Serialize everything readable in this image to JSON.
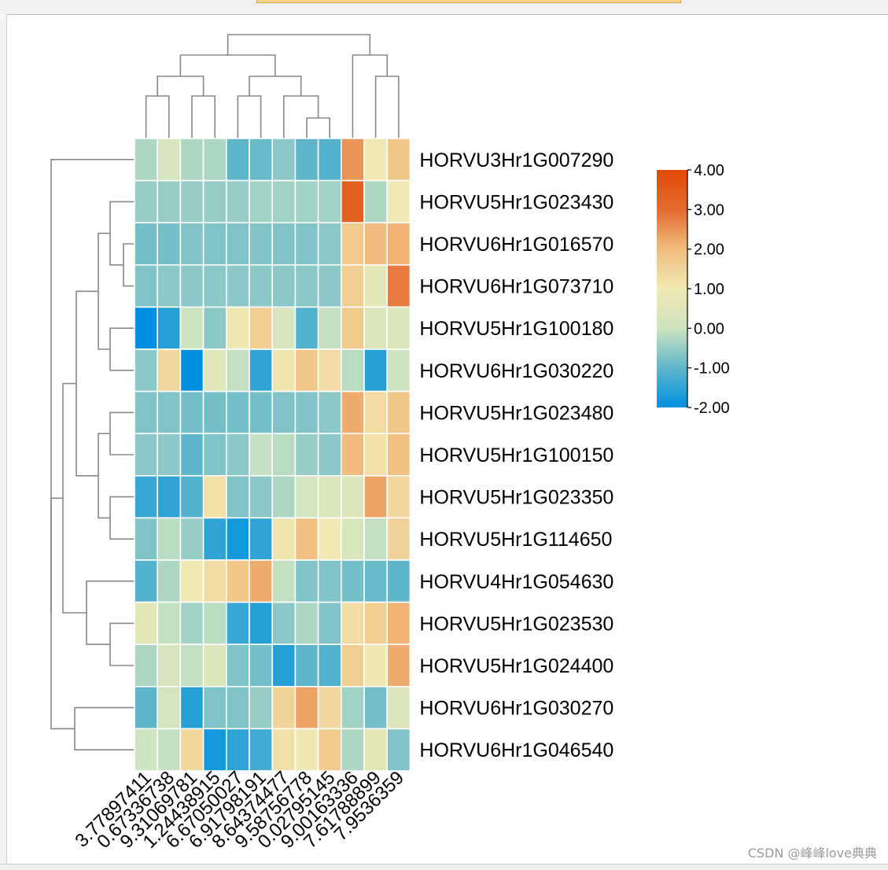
{
  "chart_data": {
    "type": "heatmap",
    "rows": [
      "HORVU3Hr1G007290",
      "HORVU5Hr1G023430",
      "HORVU6Hr1G016570",
      "HORVU6Hr1G073710",
      "HORVU5Hr1G100180",
      "HORVU6Hr1G030220",
      "HORVU5Hr1G023480",
      "HORVU5Hr1G100150",
      "HORVU5Hr1G023350",
      "HORVU5Hr1G114650",
      "HORVU4Hr1G054630",
      "HORVU5Hr1G023530",
      "HORVU5Hr1G024400",
      "HORVU6Hr1G030270",
      "HORVU6Hr1G046540"
    ],
    "columns": [
      "3.77897411",
      "0.67336738",
      "9.31069781",
      "1.24438915",
      "6.67050027",
      "6.91798191",
      "8.64374477",
      "9.58756778",
      "0.02795145",
      "9.00163336",
      "7.61788899",
      "7.9536359"
    ],
    "values": [
      [
        -0.3,
        0.2,
        -0.3,
        -0.3,
        -1.0,
        -0.9,
        -0.6,
        -1.0,
        -1.1,
        2.5,
        1.0,
        1.8
      ],
      [
        -0.5,
        -0.5,
        -0.5,
        -0.5,
        -0.5,
        -0.4,
        -0.4,
        -0.4,
        -0.4,
        3.3,
        -0.3,
        1.0
      ],
      [
        -0.8,
        -0.8,
        -0.7,
        -0.7,
        -0.7,
        -0.7,
        -0.7,
        -0.7,
        -0.6,
        1.7,
        2.0,
        2.1
      ],
      [
        -0.7,
        -0.6,
        -0.6,
        -0.6,
        -0.6,
        -0.6,
        -0.6,
        -0.6,
        -0.6,
        1.6,
        0.6,
        2.8
      ],
      [
        -2.0,
        -1.6,
        0.0,
        -0.6,
        0.9,
        1.6,
        0.2,
        -1.1,
        -0.1,
        1.7,
        0.4,
        0.4
      ],
      [
        -0.6,
        1.4,
        -2.0,
        0.5,
        -0.1,
        -1.5,
        1.1,
        1.8,
        1.3,
        -0.2,
        -1.6,
        0.0
      ],
      [
        -0.7,
        -0.7,
        -0.8,
        -0.8,
        -0.8,
        -0.8,
        -0.7,
        -0.7,
        -0.6,
        2.2,
        1.3,
        1.8
      ],
      [
        -0.6,
        -0.6,
        -1.0,
        -0.7,
        -0.6,
        -0.1,
        -0.2,
        -0.5,
        -0.6,
        2.0,
        1.2,
        1.9
      ],
      [
        -1.4,
        -1.5,
        -1.1,
        1.2,
        -0.7,
        -0.6,
        -0.3,
        0.1,
        0.3,
        0.4,
        2.3,
        1.4
      ],
      [
        -0.7,
        -0.2,
        -0.5,
        -1.5,
        -1.8,
        -1.5,
        1.1,
        1.9,
        1.0,
        0.3,
        -0.1,
        1.5
      ],
      [
        -1.1,
        -0.3,
        1.0,
        1.3,
        1.8,
        2.2,
        -0.1,
        -0.7,
        -0.7,
        -0.8,
        -0.9,
        -1.0
      ],
      [
        0.6,
        -0.1,
        -0.4,
        -0.2,
        -1.4,
        -1.6,
        -0.6,
        -0.3,
        -0.7,
        1.3,
        1.6,
        2.1
      ],
      [
        -0.3,
        0.2,
        -0.1,
        0.4,
        -0.7,
        -0.8,
        -1.6,
        -1.0,
        -1.1,
        1.6,
        0.9,
        2.2
      ],
      [
        -1.0,
        0.1,
        -1.6,
        -0.7,
        -0.7,
        -0.5,
        1.5,
        2.3,
        1.4,
        -0.4,
        -0.8,
        0.4
      ],
      [
        0.0,
        -0.1,
        1.4,
        -1.8,
        -1.5,
        -1.3,
        1.2,
        0.9,
        1.7,
        -0.3,
        0.6,
        -0.7
      ]
    ],
    "colorbar": {
      "min": -2.0,
      "max": 4.0,
      "ticks": [
        "4.00",
        "3.00",
        "2.00",
        "1.00",
        "0.00",
        "-1.00",
        "-2.00"
      ],
      "colors": [
        "#0090df",
        "#5fb6cb",
        "#cfe4c0",
        "#f1e9b3",
        "#f1bd7e",
        "#e46a2f",
        "#e24a08"
      ]
    },
    "row_dendrogram": "left",
    "column_dendrogram": "top",
    "cell_border_color": "#ffffff"
  },
  "watermark": "CSDN @峰峰love典典"
}
